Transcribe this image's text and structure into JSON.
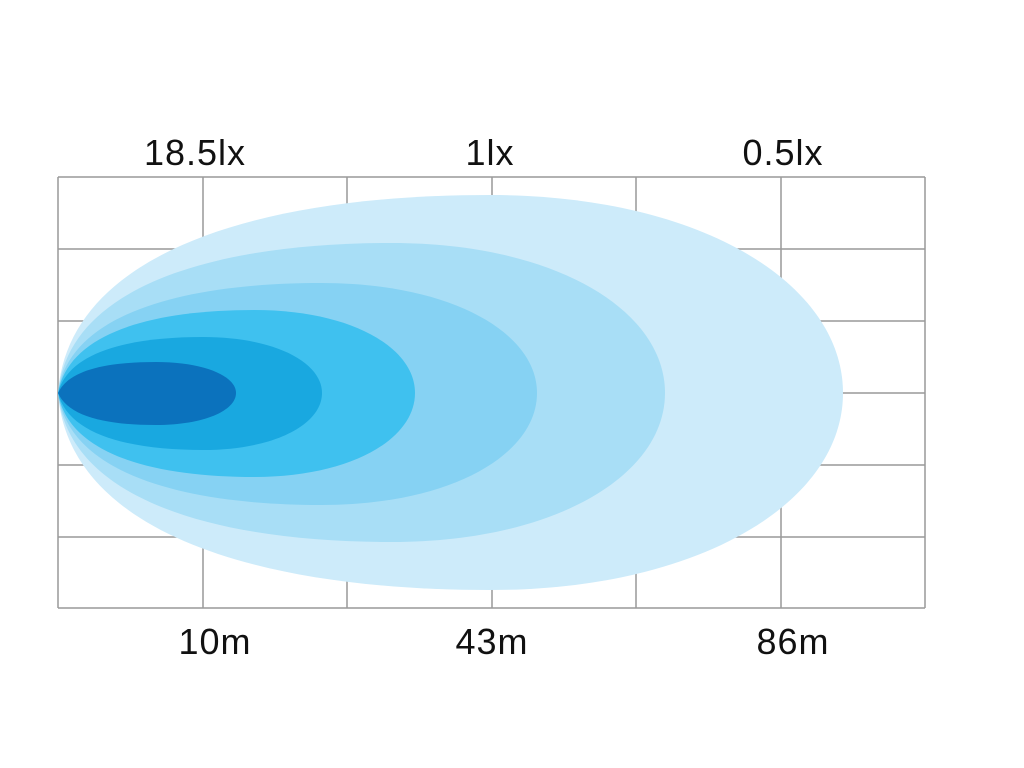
{
  "top_labels": [
    "18.5lx",
    "1lx",
    "0.5lx"
  ],
  "bottom_labels": [
    "10m",
    "43m",
    "86m"
  ]
}
